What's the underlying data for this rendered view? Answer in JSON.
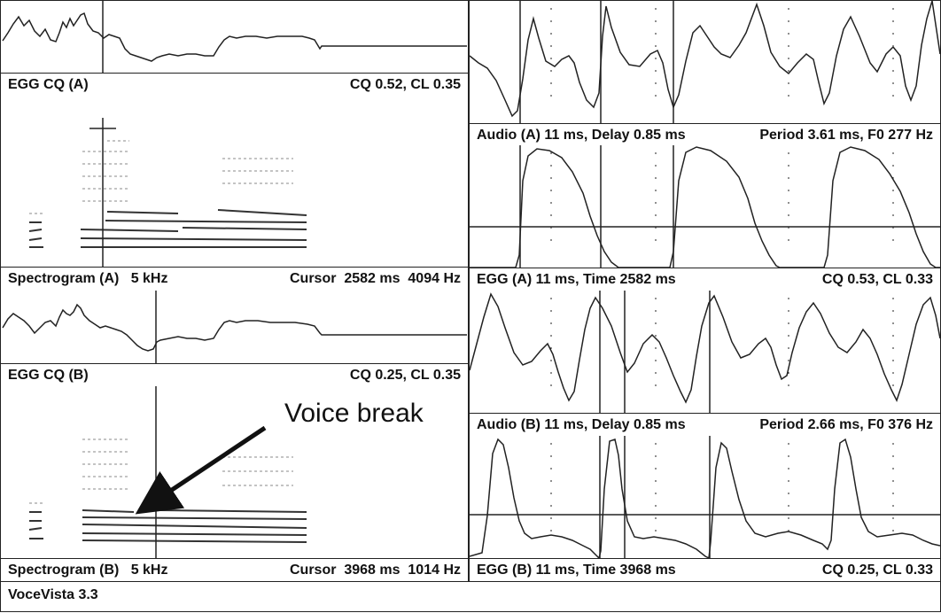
{
  "app": {
    "status": "VoceVista 3.3"
  },
  "left_panels": {
    "egg_cq_a": {
      "title": "EGG CQ (A)",
      "readout": "CQ 0.52, CL 0.35"
    },
    "spectrogram_a": {
      "title": "Spectrogram (A)   5 kHz",
      "readout": "Cursor  2582 ms  4094 Hz"
    },
    "egg_cq_b": {
      "title": "EGG CQ (B)",
      "readout": "CQ 0.25, CL 0.35"
    },
    "spectrogram_b": {
      "title": "Spectrogram (B)   5 kHz",
      "readout": "Cursor  3968 ms  1014 Hz"
    }
  },
  "right_panels": {
    "audio_a": {
      "title": "Audio (A) 11 ms, Delay 0.85 ms",
      "readout": "Period 3.61 ms, F0 277 Hz"
    },
    "egg_a": {
      "title": "EGG (A) 11 ms, Time 2582 ms",
      "readout": "CQ 0.53, CL 0.33"
    },
    "audio_b": {
      "title": "Audio (B) 11 ms, Delay 0.85 ms",
      "readout": "Period 2.66 ms, F0 376 Hz"
    },
    "egg_b": {
      "title": "EGG (B) 11 ms, Time 3968 ms",
      "readout": "CQ 0.25, CL 0.33"
    }
  },
  "annotation": {
    "text": "Voice break"
  },
  "colors": {
    "trace": "#222222",
    "spectral": "#333333",
    "background": "#ffffff"
  }
}
